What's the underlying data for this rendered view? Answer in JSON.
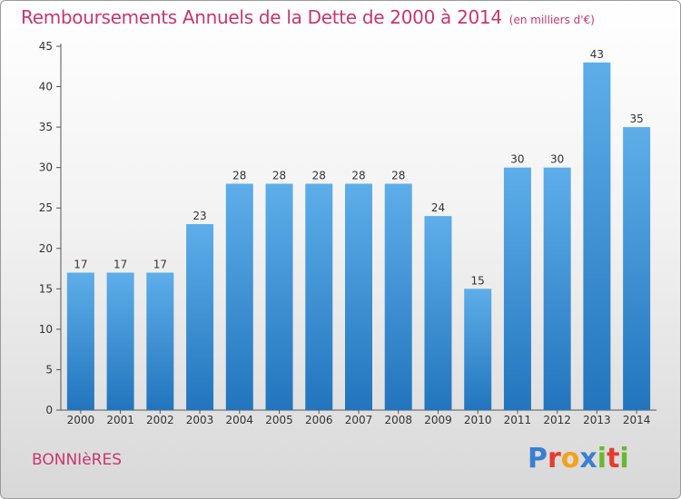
{
  "header": {
    "title": "Remboursements Annuels de la Dette de 2000 à 2014",
    "unit": "(en milliers d'€)"
  },
  "footer": {
    "commune": "BONNIèRES",
    "logo_letters": [
      "P",
      "r",
      "o",
      "x",
      "i",
      "t",
      "i"
    ],
    "logo_colors": [
      "#3a7fd0",
      "#e53c2e",
      "#f2a21b",
      "#3a7fd0",
      "#69b72f",
      "#e53c2e",
      "#69b72f"
    ]
  },
  "chart_data": {
    "type": "bar",
    "title": "Remboursements Annuels de la Dette de 2000 à 2014",
    "categories": [
      "2000",
      "2001",
      "2002",
      "2003",
      "2004",
      "2005",
      "2006",
      "2007",
      "2008",
      "2009",
      "2010",
      "2011",
      "2012",
      "2013",
      "2014"
    ],
    "values": [
      17,
      17,
      17,
      23,
      28,
      28,
      28,
      28,
      28,
      24,
      15,
      30,
      30,
      43,
      35
    ],
    "data_labels": [
      "17",
      "17",
      "17",
      "23",
      "28",
      "28",
      "28",
      "28",
      "28",
      "24",
      "15",
      "30",
      "30",
      "43",
      "35"
    ],
    "ylim": [
      0,
      45
    ],
    "yticks": [
      0,
      5,
      10,
      15,
      20,
      25,
      30,
      35,
      40,
      45
    ],
    "grid": false,
    "bar_color_top": "#5daee9",
    "bar_color_bottom": "#2275bd"
  }
}
